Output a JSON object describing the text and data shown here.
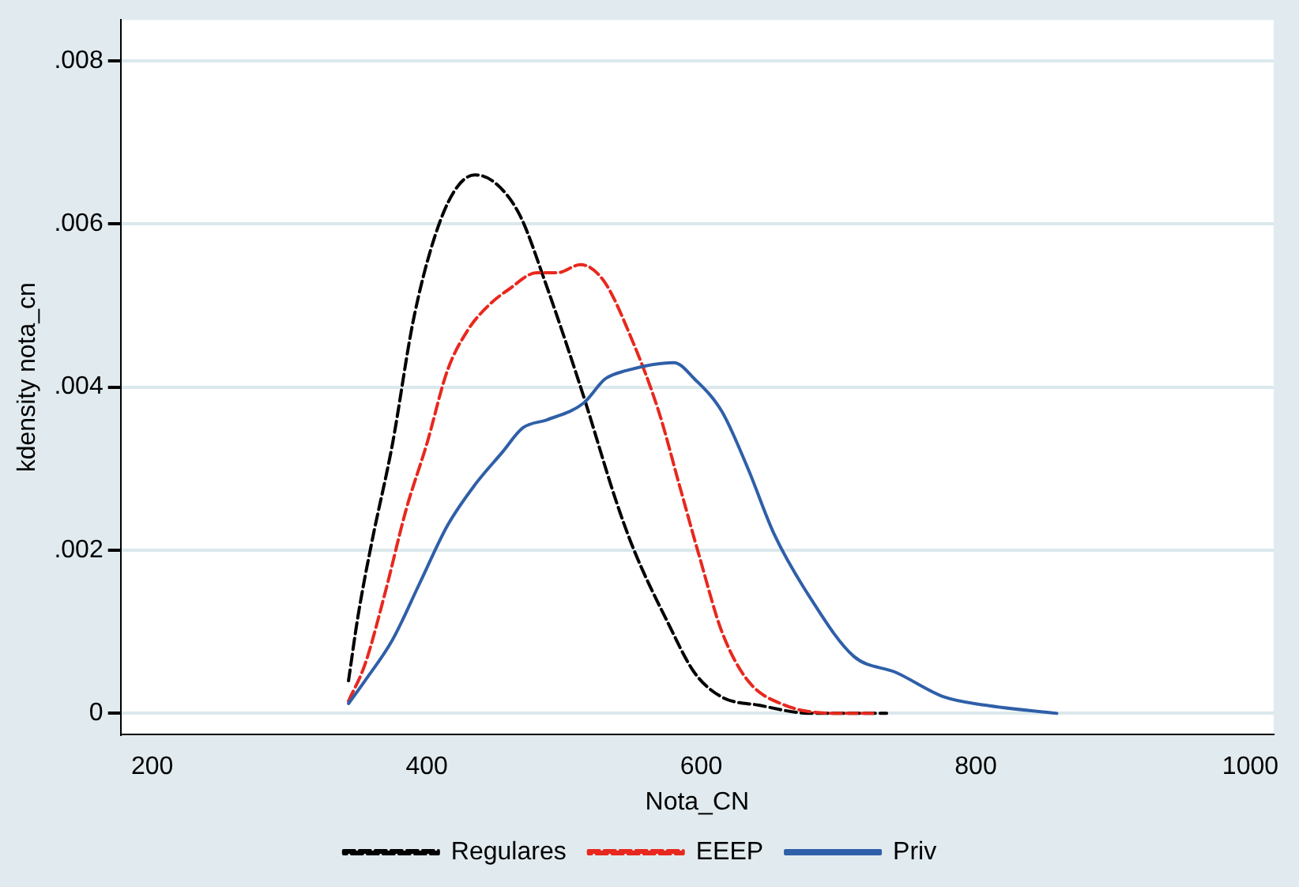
{
  "chart_data": {
    "type": "line",
    "xlabel": "Nota_CN",
    "ylabel": "kdensity nota_cn",
    "xlim": [
      177,
      1017
    ],
    "xticks": [
      200,
      400,
      600,
      800,
      1000
    ],
    "ylim": [
      -0.00026,
      0.0085
    ],
    "yticks": [
      {
        "value": 0,
        "label": "0"
      },
      {
        "value": 0.002,
        "label": ".002"
      },
      {
        "value": 0.004,
        "label": ".004"
      },
      {
        "value": 0.006,
        "label": ".006"
      },
      {
        "value": 0.008,
        "label": ".008"
      }
    ],
    "grid": "y",
    "legend": "bottom",
    "marker": "none",
    "series": [
      {
        "name": "Regulares",
        "color": "#000000",
        "line_style": "dashed",
        "x": [
          343,
          350,
          360,
          375,
          390,
          405,
          420,
          435,
          450,
          468,
          486,
          514,
          538,
          551,
          576,
          595,
          615,
          642,
          680,
          735
        ],
        "values": [
          0.0004,
          0.0012,
          0.0021,
          0.0033,
          0.0048,
          0.0058,
          0.0064,
          0.0066,
          0.0065,
          0.0061,
          0.0053,
          0.0039,
          0.0026,
          0.002,
          0.0011,
          0.0005,
          0.0002,
          0.0001,
          0,
          0
        ]
      },
      {
        "name": "EEEP",
        "color": "#e8281e",
        "line_style": "dashed",
        "x": [
          343,
          355,
          370,
          385,
          400,
          415,
          430,
          445,
          460,
          480,
          495,
          512,
          529,
          549,
          569,
          584,
          599,
          615,
          634,
          661,
          699,
          725
        ],
        "values": [
          0.00015,
          0.0006,
          0.0015,
          0.0025,
          0.0033,
          0.0042,
          0.0047,
          0.005,
          0.0052,
          0.0054,
          0.0054,
          0.0055,
          0.0053,
          0.0046,
          0.0037,
          0.0028,
          0.0019,
          0.001,
          0.0004,
          0.0001,
          0,
          0
        ]
      },
      {
        "name": "Priv",
        "color": "#2f5fa8",
        "line_style": "solid",
        "x": [
          343,
          355,
          375,
          395,
          415,
          435,
          455,
          470,
          488,
          514,
          530,
          545,
          580,
          595,
          615,
          634,
          653,
          680,
          711,
          742,
          777,
          807,
          859
        ],
        "values": [
          0.00012,
          0.0004,
          0.0009,
          0.0016,
          0.0023,
          0.0028,
          0.0032,
          0.0035,
          0.0036,
          0.0038,
          0.0041,
          0.0042,
          0.0043,
          0.0041,
          0.0037,
          0.003,
          0.0022,
          0.0014,
          0.0007,
          0.0005,
          0.0002,
          0.0001,
          0
        ]
      }
    ]
  }
}
